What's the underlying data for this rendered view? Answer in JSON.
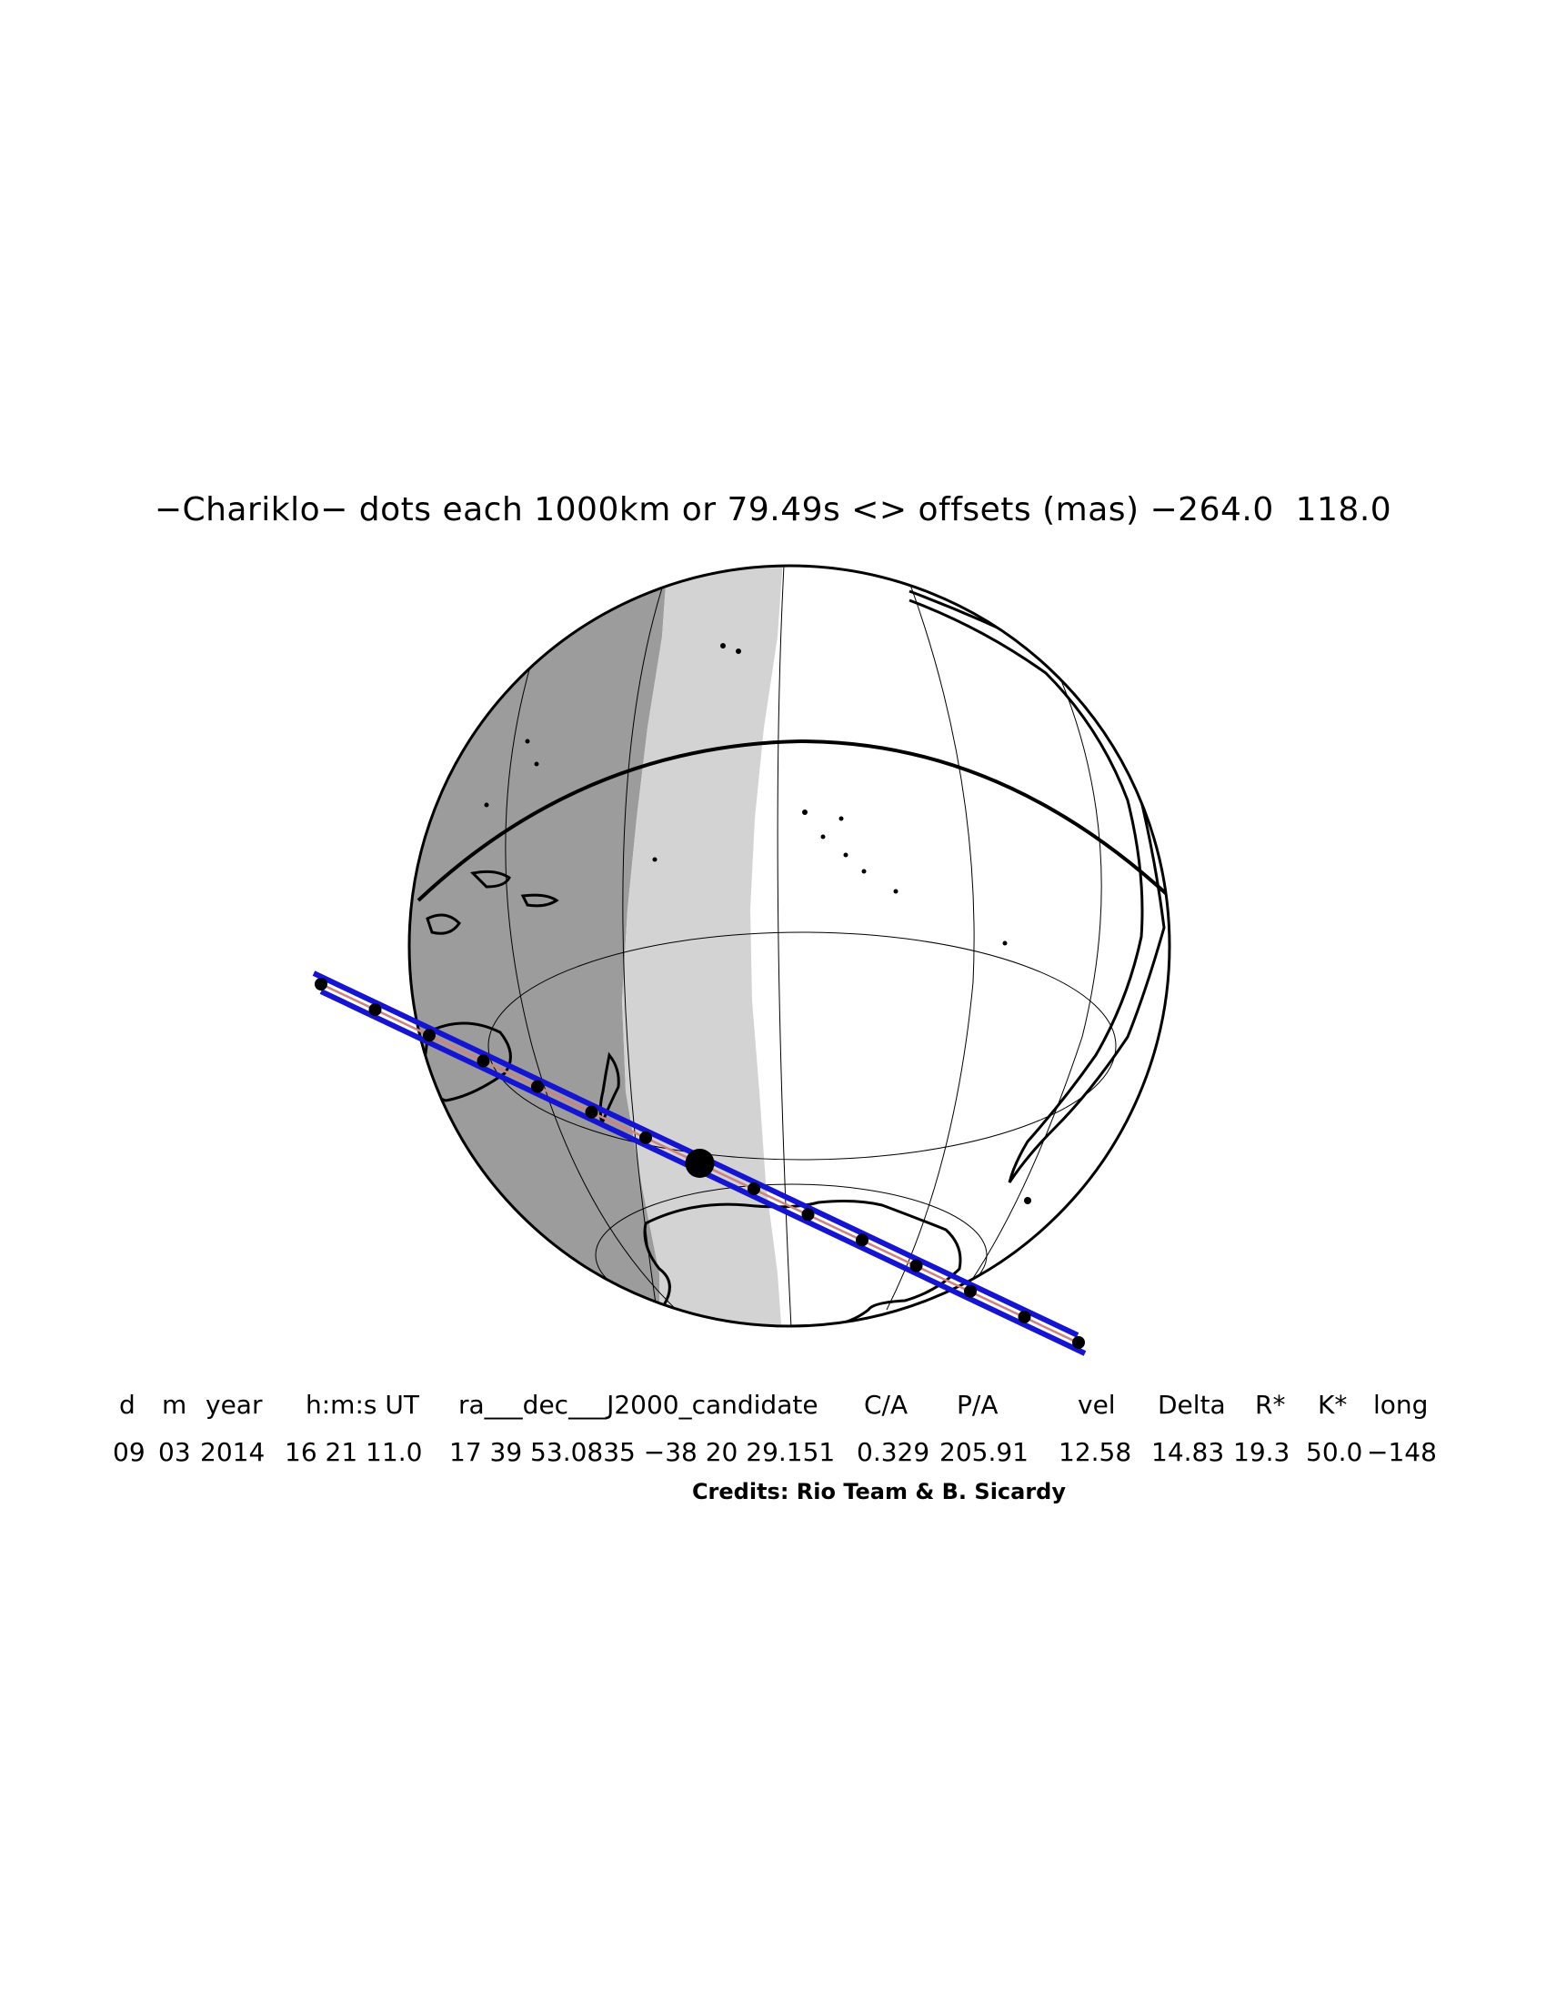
{
  "title": "−Chariklo− dots each 1000km or 79.49s <> offsets (mas) −264.0  118.0",
  "table": {
    "headers": [
      "d",
      "m",
      "year",
      "h:m:s UT",
      "ra___dec___J2000_candidate",
      "C/A",
      "P/A",
      "vel",
      "Delta",
      "R*",
      "K*",
      "long"
    ],
    "values": [
      "09",
      "03",
      "2014",
      "16 21 11.0",
      "17 39 53.0835 −38 20 29.151",
      "0.329",
      "205.91",
      "12.58",
      "14.83",
      "19.3",
      "50.0",
      "−148"
    ]
  },
  "credits": "Credits: Rio Team & B. Sicardy",
  "map": {
    "projection": "orthographic",
    "night_shade_color": "#9c9c9c",
    "twilight_shade_color": "#d3d3d3",
    "day_color": "#ffffff",
    "path_color": "#1414d2",
    "centerline_color": "#d08080",
    "dot_count": 15,
    "closest_approach_dot_index": 7
  }
}
